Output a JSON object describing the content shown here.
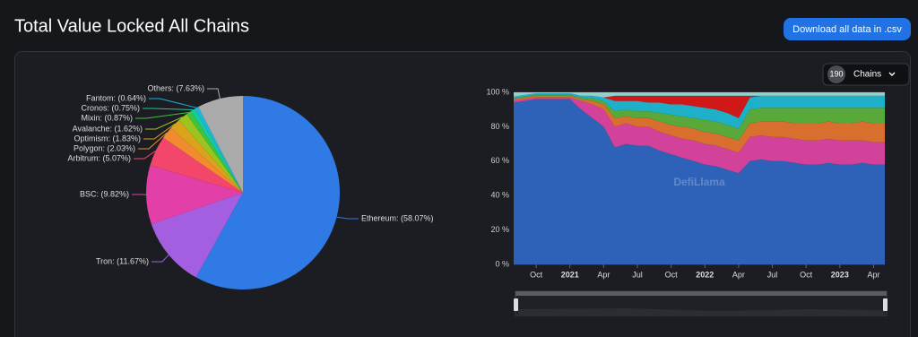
{
  "header": {
    "title": "Total Value Locked All Chains",
    "button": "Download all data in .csv"
  },
  "controls": {
    "chains_count": "190",
    "chains_label": "Chains"
  },
  "chart_data": [
    {
      "type": "pie",
      "values": [
        58.07,
        11.67,
        9.82,
        5.07,
        2.03,
        1.83,
        1.62,
        0.87,
        0.75,
        0.64,
        7.63
      ],
      "value_labels": [
        "Ethereum: (58.07%)",
        "Tron: (11.67%)",
        "BSC: (9.82%)",
        "Arbitrum: (5.07%)",
        "Polygon: (2.03%)",
        "Optimism: (1.83%)",
        "Avalanche: (1.62%)",
        "Mixin: (0.87%)",
        "Cronos: (0.75%)",
        "Fantom: (0.64%)",
        "Others: (7.63%)"
      ],
      "colors": [
        "#2f7ae5",
        "#a35fe0",
        "#e240a8",
        "#f2466a",
        "#f28a30",
        "#d9a31c",
        "#9cc31f",
        "#3cc43c",
        "#19c9a0",
        "#19b8d8",
        "#aaaaaa"
      ]
    },
    {
      "type": "area",
      "stacked": true,
      "watermark": "DefiLlama",
      "x": [
        "2020-08",
        "2020-09",
        "2020-10",
        "2020-11",
        "2020-12",
        "2021-01",
        "2021-02",
        "2021-03",
        "2021-04",
        "2021-05",
        "2021-06",
        "2021-07",
        "2021-08",
        "2021-09",
        "2021-10",
        "2021-11",
        "2021-12",
        "2022-01",
        "2022-02",
        "2022-03",
        "2022-04",
        "2022-05",
        "2022-06",
        "2022-07",
        "2022-08",
        "2022-09",
        "2022-10",
        "2022-11",
        "2022-12",
        "2023-01",
        "2023-02",
        "2023-03",
        "2023-04",
        "2023-05"
      ],
      "xlim": [
        "2020-08",
        "2023-05"
      ],
      "xticks": [
        {
          "value": "2020-10",
          "label": "Oct"
        },
        {
          "value": "2021-01",
          "label": "2021"
        },
        {
          "value": "2021-04",
          "label": "Apr"
        },
        {
          "value": "2021-07",
          "label": "Jul"
        },
        {
          "value": "2021-10",
          "label": "Oct"
        },
        {
          "value": "2022-01",
          "label": "2022"
        },
        {
          "value": "2022-04",
          "label": "Apr"
        },
        {
          "value": "2022-07",
          "label": "Jul"
        },
        {
          "value": "2022-10",
          "label": "Oct"
        },
        {
          "value": "2023-01",
          "label": "2023"
        },
        {
          "value": "2023-04",
          "label": "Apr"
        }
      ],
      "ylim": [
        0,
        100
      ],
      "yticks": [
        {
          "value": 0,
          "label": "0 %"
        },
        {
          "value": 20,
          "label": "20 %"
        },
        {
          "value": 40,
          "label": "40 %"
        },
        {
          "value": 60,
          "label": "60 %"
        },
        {
          "value": 80,
          "label": "80 %"
        },
        {
          "value": 100,
          "label": "100 %"
        }
      ],
      "grid": true,
      "series": [
        {
          "color": "#2d62b8",
          "values": [
            94,
            95,
            96,
            96,
            96,
            96,
            90,
            85,
            80,
            68,
            70,
            69,
            69,
            66,
            64,
            62,
            60,
            58,
            57,
            55,
            53,
            60,
            61,
            60,
            60,
            59,
            58,
            58,
            59,
            58,
            58,
            59,
            58,
            58
          ]
        },
        {
          "color": "#d2429a",
          "values": [
            1,
            1,
            1,
            1,
            1,
            1,
            5,
            8,
            10,
            12,
            12,
            11,
            11,
            11,
            11,
            11,
            12,
            12,
            12,
            12,
            12,
            14,
            14,
            14,
            14,
            14,
            14,
            14,
            14,
            14,
            14,
            13,
            13,
            13
          ]
        },
        {
          "color": "#d86f2e",
          "values": [
            1,
            1,
            1,
            1,
            1,
            1,
            1,
            2,
            3,
            5,
            4,
            5,
            5,
            6,
            6,
            7,
            7,
            7,
            7,
            7,
            7,
            8,
            8,
            9,
            9,
            9,
            10,
            10,
            10,
            10,
            10,
            11,
            11,
            11
          ]
        },
        {
          "color": "#58a83a",
          "values": [
            0.5,
            0.5,
            0.5,
            0.5,
            0.5,
            0.5,
            1,
            1.5,
            2,
            4,
            4,
            4,
            4,
            5,
            6,
            6,
            6,
            7,
            7,
            7,
            7,
            8,
            8,
            8,
            8,
            9,
            9,
            9,
            8,
            9,
            9,
            8,
            9,
            9
          ]
        },
        {
          "color": "#1fb0c9",
          "values": [
            1,
            1,
            1,
            1,
            1,
            1,
            1,
            1.5,
            2,
            6,
            5,
            6,
            5,
            6,
            6,
            7,
            7,
            7,
            7,
            7,
            6,
            7,
            7,
            7,
            7,
            7,
            7,
            7,
            7,
            7,
            7,
            7,
            7,
            7
          ]
        },
        {
          "color": "#d01818",
          "values": [
            0,
            0,
            0,
            0,
            0,
            0,
            0,
            0,
            0,
            3,
            3,
            3,
            4,
            4,
            5,
            5,
            6,
            7,
            8,
            10,
            13,
            1,
            0,
            0,
            0,
            0,
            0,
            0,
            0,
            0,
            0,
            0,
            0,
            0
          ]
        },
        {
          "color": "#8fd1cc",
          "values": [
            2.5,
            1.5,
            0.5,
            0.5,
            0.5,
            0.5,
            2,
            2,
            3,
            2,
            2,
            2,
            2,
            2,
            2,
            2,
            2,
            2,
            2,
            2,
            2,
            2,
            2,
            2,
            2,
            2,
            2,
            2,
            2,
            2,
            2,
            2,
            2,
            2
          ]
        }
      ]
    }
  ]
}
